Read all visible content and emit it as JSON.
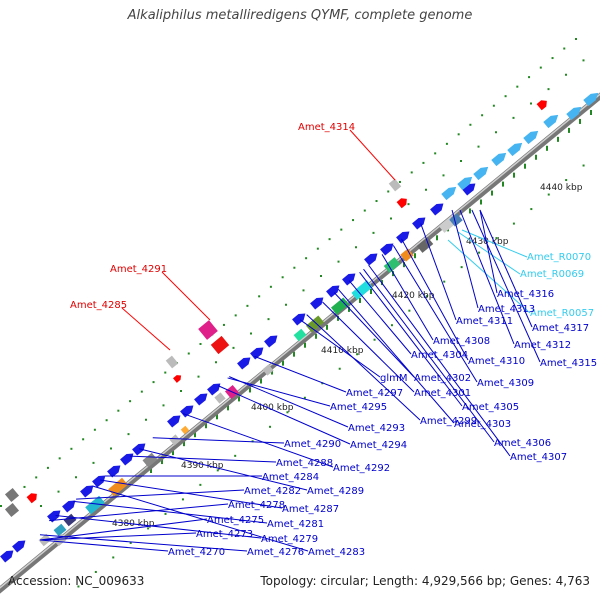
{
  "title": "Alkaliphilus metalliredigens QYMF, complete genome",
  "footer": {
    "accession": "Accession: NC_009633",
    "topology": "Topology: circular; Length: 4,929,566 bp; Genes: 4,763"
  },
  "colors": {
    "backbone": "#808080",
    "gene_blue": "#1a1ae6",
    "gene_light": "#45b4f0",
    "rna": "#33ccee",
    "callout_red": "#ff0000",
    "label_blue": "#0000cc",
    "label_red": "#e00000",
    "dot_green": "#228822"
  },
  "ticks": [
    "4380 kbp",
    "4390 kbp",
    "4400 kbp",
    "4410 kbp",
    "4420 kbp",
    "4430 kbp",
    "4440 kbp"
  ],
  "red_labels": [
    "Amet_4314",
    "Amet_4291",
    "Amet_4285"
  ],
  "rna_labels": [
    "Amet_R0070",
    "Amet_R0069",
    "Amet_R0057"
  ],
  "gene_labels": [
    "Amet_4316",
    "Amet_4313",
    "Amet_4311",
    "Amet_4317",
    "Amet_4312",
    "Amet_4308",
    "Amet_4315",
    "Amet_4310",
    "Amet_4304",
    "Amet_4302",
    "Amet_4309",
    "glmM",
    "Amet_4297",
    "Amet_4301",
    "Amet_4295",
    "Amet_4305",
    "Amet_4299",
    "Amet_4293",
    "Amet_4303",
    "Amet_4294",
    "Amet_4290",
    "Amet_4306",
    "Amet_4307",
    "Amet_4288",
    "Amet_4292",
    "Amet_4284",
    "Amet_4289",
    "Amet_4282",
    "Amet_4278",
    "Amet_4287",
    "Amet_4275",
    "Amet_4281",
    "Amet_4273",
    "Amet_4279",
    "Amet_4270",
    "Amet_4276",
    "Amet_4283"
  ]
}
